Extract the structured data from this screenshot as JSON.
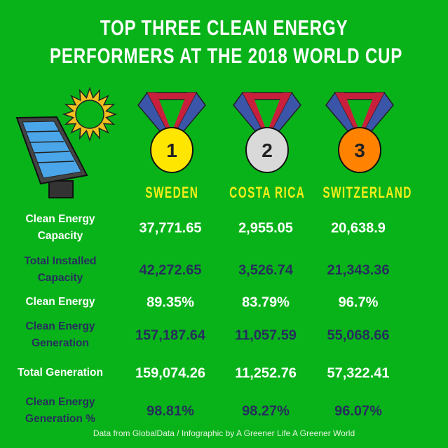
{
  "title": {
    "line1": "TOP THREE CLEAN ENERGY",
    "line2": "PERFORMERS AT THE 2018 WORLD CUP"
  },
  "colors": {
    "background": "#08b31a",
    "header_text": "#ffffff",
    "country_text": "#f5ee1a",
    "navy_text": "#262e5c",
    "gold": "#ffe600",
    "silver": "#d9d9d9",
    "bronze": "#ff8200",
    "ribbon_red": "#c8203c",
    "ribbon_blue": "#3b55a8"
  },
  "illustrations": [
    "solar-panel-icon",
    "sun-icon"
  ],
  "countries": [
    {
      "rank": "1",
      "name": "SWEDEN",
      "medal": "gold"
    },
    {
      "rank": "2",
      "name": "COSTA RICA",
      "medal": "silver"
    },
    {
      "rank": "3",
      "name": "SWITZERLAND",
      "medal": "bronze"
    }
  ],
  "rows": [
    {
      "label": "Clean Energy Capacity",
      "values": [
        "37,771.65",
        "2,955.05",
        "20,638.9"
      ]
    },
    {
      "label": "Total Installed Capacity",
      "values": [
        "42,272.65",
        "3,526.74",
        "21,343.36"
      ]
    },
    {
      "label": "Clean Energy",
      "values": [
        "89.35%",
        "83.79%",
        "96.7%"
      ]
    },
    {
      "label": "Clean Energy Generation",
      "values": [
        "157,187.64",
        "11,057.59",
        "55,068.66"
      ]
    },
    {
      "label": "Total Generation",
      "values": [
        "159,074.26",
        "11,252.76",
        "57,322.41"
      ]
    },
    {
      "label": "Clean Energy Generation %",
      "values": [
        "98.81%",
        "98.27%",
        "96.07%"
      ]
    }
  ],
  "footer": "Data from GlobalData / Infographic by A Greener Life A Greener World"
}
